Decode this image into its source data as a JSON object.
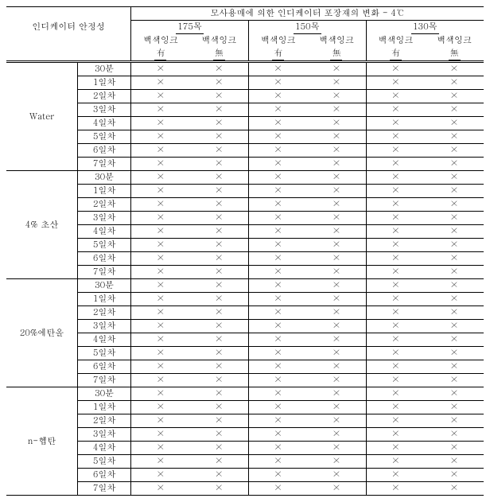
{
  "header": {
    "row_label": "인디케이터 안정성",
    "title": "모사용매에 의한 인디케이터 포장재의 변화 - 4℃",
    "mesh": [
      "175목",
      "150목",
      "130목"
    ],
    "ink_label": "백색잉크",
    "yes": "有",
    "no": "無"
  },
  "timepoints": [
    "30분",
    "1일차",
    "2일차",
    "3일차",
    "4일차",
    "5일차",
    "6일차",
    "7일차"
  ],
  "groups": [
    {
      "name": "Water"
    },
    {
      "name": "4% 초산"
    },
    {
      "name": "20%에탄올"
    },
    {
      "name": "n-헵탄"
    }
  ],
  "mark": "×"
}
